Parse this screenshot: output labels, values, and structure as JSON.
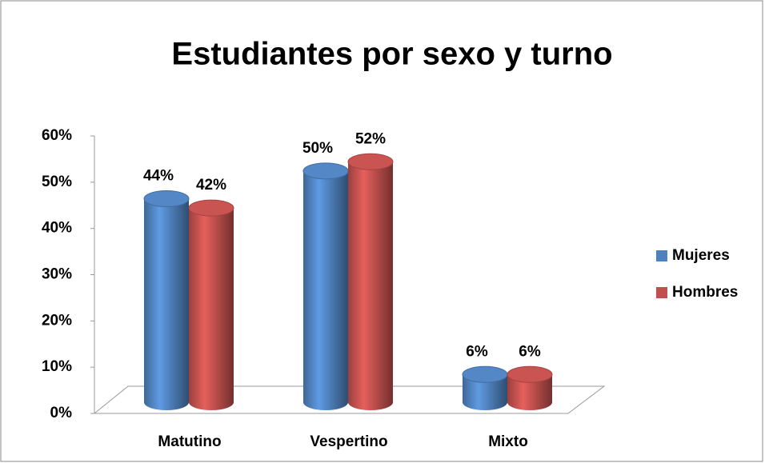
{
  "chart_data": {
    "type": "bar3d",
    "title": "Estudiantes por sexo y turno",
    "categories": [
      "Matutino",
      "Vespertino",
      "Mixto"
    ],
    "series": [
      {
        "name": "Mujeres",
        "color": "#4f81bd",
        "values": [
          44,
          50,
          6
        ],
        "value_labels": [
          "44%",
          "50%",
          "6%"
        ]
      },
      {
        "name": "Hombres",
        "color": "#c0504d",
        "values": [
          42,
          52,
          6
        ],
        "value_labels": [
          "42%",
          "52%",
          "6%"
        ]
      }
    ],
    "ylim": [
      0,
      60
    ],
    "yticks": [
      {
        "value": 0,
        "label": "0%"
      },
      {
        "value": 10,
        "label": "10%"
      },
      {
        "value": 20,
        "label": "20%"
      },
      {
        "value": 30,
        "label": "30%"
      },
      {
        "value": 40,
        "label": "40%"
      },
      {
        "value": 50,
        "label": "50%"
      },
      {
        "value": 60,
        "label": "60%"
      }
    ],
    "legend": "right"
  }
}
